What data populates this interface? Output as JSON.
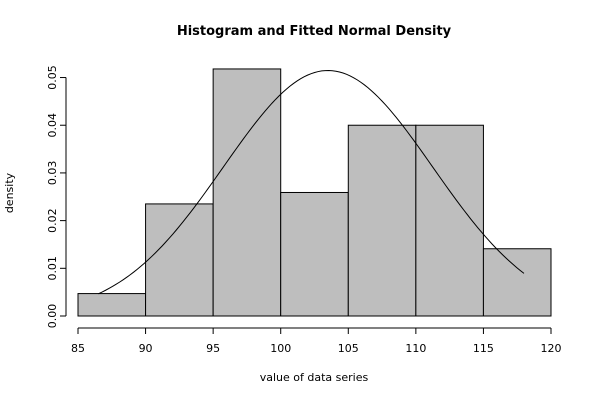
{
  "chart_data": {
    "type": "histogram",
    "title": "Histogram and Fitted Normal Density",
    "xlabel": "value of data series",
    "ylabel": "density",
    "bins": [
      {
        "from": 85,
        "to": 90,
        "density": 0.0047
      },
      {
        "from": 90,
        "to": 95,
        "density": 0.0235
      },
      {
        "from": 95,
        "to": 100,
        "density": 0.0518
      },
      {
        "from": 100,
        "to": 105,
        "density": 0.0259
      },
      {
        "from": 105,
        "to": 110,
        "density": 0.04
      },
      {
        "from": 110,
        "to": 115,
        "density": 0.04
      },
      {
        "from": 115,
        "to": 120,
        "density": 0.0141
      }
    ],
    "fitted_normal": {
      "mean": 103.5,
      "sd": 7.75,
      "x_range": [
        86.5,
        118
      ]
    },
    "xlim": [
      85,
      120
    ],
    "ylim": [
      0,
      0.052
    ],
    "x_ticks": [
      "85",
      "90",
      "95",
      "100",
      "105",
      "110",
      "115",
      "120"
    ],
    "y_ticks": [
      "0.00",
      "0.01",
      "0.02",
      "0.03",
      "0.04",
      "0.05"
    ],
    "bar_fill": "#bebebe",
    "bar_stroke": "#000000",
    "curve_color": "#000000",
    "grid": false,
    "legend": "none"
  }
}
